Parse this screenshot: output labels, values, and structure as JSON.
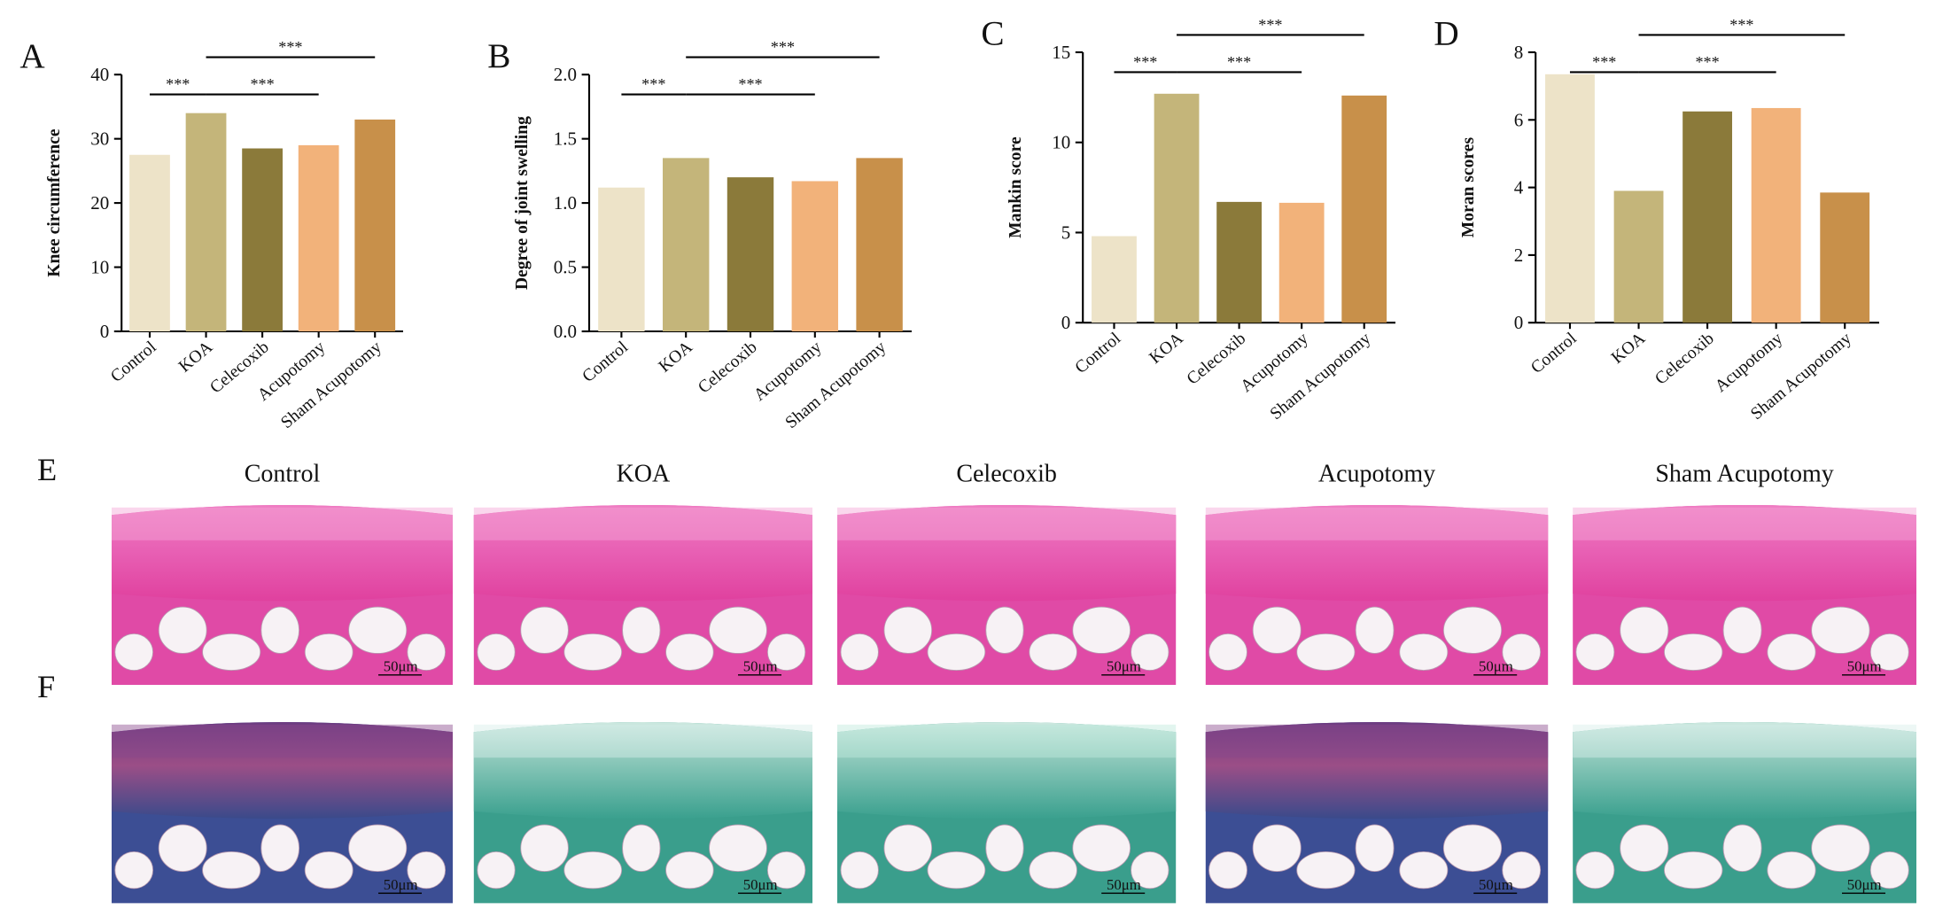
{
  "chart_data": [
    {
      "type": "bar",
      "panel": "A",
      "ylabel": "Knee circumference",
      "categories": [
        "Control",
        "KOA",
        "Celecoxib",
        "Acupotomy",
        "Sham Acupotomy"
      ],
      "values": [
        27.5,
        34,
        28.5,
        29,
        33
      ],
      "colors": [
        "#ede3c8",
        "#c4b57a",
        "#8b7a3a",
        "#f2b27a",
        "#c8904a"
      ],
      "ylim": [
        0,
        40
      ],
      "yticks": [
        0,
        10,
        20,
        30,
        40
      ],
      "significance": [
        "***",
        "***",
        "***"
      ]
    },
    {
      "type": "bar",
      "panel": "B",
      "ylabel": "Degree of joint swelling",
      "categories": [
        "Control",
        "KOA",
        "Celecoxib",
        "Acupotomy",
        "Sham Acupotomy"
      ],
      "values": [
        1.12,
        1.35,
        1.2,
        1.17,
        1.35
      ],
      "colors": [
        "#ede3c8",
        "#c4b57a",
        "#8b7a3a",
        "#f2b27a",
        "#c8904a"
      ],
      "ylim": [
        0,
        2
      ],
      "yticks": [
        {
          "value": 0,
          "label": "0.0"
        },
        0.5,
        {
          "value": 1,
          "label": "1.0"
        },
        1.5,
        {
          "value": 2,
          "label": "2.0"
        }
      ],
      "significance": [
        "***",
        "***",
        "***"
      ]
    },
    {
      "type": "bar",
      "panel": "C",
      "ylabel": "Mankin score",
      "categories": [
        "Control",
        "KOA",
        "Celecoxib",
        "Acupotomy",
        "Sham Acupotomy"
      ],
      "values": [
        4.8,
        12.7,
        6.7,
        6.65,
        12.6
      ],
      "colors": [
        "#ede3c8",
        "#c4b57a",
        "#8b7a3a",
        "#f2b27a",
        "#c8904a"
      ],
      "ylim": [
        0,
        15
      ],
      "yticks": [
        0,
        5,
        10,
        15
      ],
      "significance": [
        "***",
        "***",
        "***"
      ]
    },
    {
      "type": "bar",
      "panel": "D",
      "ylabel": "Moran scores",
      "categories": [
        "Control",
        "KOA",
        "Celecoxib",
        "Acupotomy",
        "Sham Acupotomy"
      ],
      "values": [
        7.35,
        3.9,
        6.25,
        6.35,
        3.85
      ],
      "colors": [
        "#ede3c8",
        "#c4b57a",
        "#8b7a3a",
        "#f2b27a",
        "#c8904a"
      ],
      "ylim": [
        0,
        8
      ],
      "yticks": [
        0,
        2,
        4,
        6,
        8
      ],
      "significance": [
        "***",
        "***",
        "***"
      ]
    }
  ],
  "histology": {
    "rows": [
      "E",
      "F"
    ],
    "columns": [
      "Control",
      "KOA",
      "Celecoxib",
      "Acupotomy",
      "Sham Acupotomy"
    ],
    "scale_bar": "50μm"
  }
}
